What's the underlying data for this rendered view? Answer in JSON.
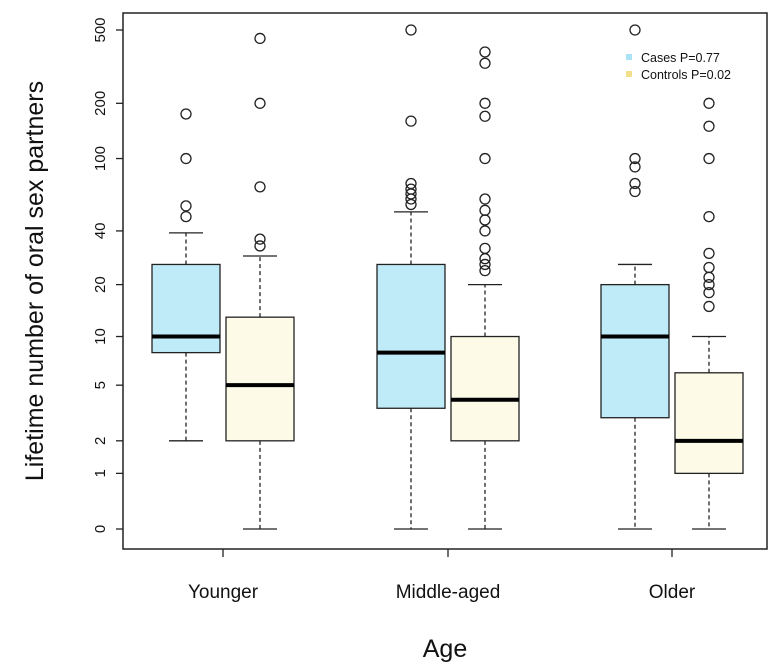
{
  "chart_data": {
    "type": "box",
    "xlabel": "Age",
    "ylabel": "Lifetime number of oral sex partners",
    "y_scale": "log(1+y)",
    "ylim": [
      0,
      500
    ],
    "y_ticks": [
      {
        "value": 0,
        "label": "0"
      },
      {
        "value": 1,
        "label": "1"
      },
      {
        "value": 2,
        "label": "2"
      },
      {
        "value": 5,
        "label": "5"
      },
      {
        "value": 10,
        "label": "10"
      },
      {
        "value": 20,
        "label": "20"
      },
      {
        "value": 40,
        "label": "40"
      },
      {
        "value": 100,
        "label": "100"
      },
      {
        "value": 200,
        "label": "200"
      },
      {
        "value": 500,
        "label": "500"
      }
    ],
    "categories": [
      "Younger",
      "Middle-aged",
      "Older"
    ],
    "legend_position": "top-right",
    "series": [
      {
        "name": "Cases P=0.77",
        "color": "#bfeaf7",
        "legend_color": "#a9e3f5",
        "boxes": [
          {
            "min": 2,
            "q1": 8,
            "median": 10,
            "q3": 26,
            "max": 39,
            "outliers": [
              48,
              55,
              100,
              175
            ]
          },
          {
            "min": 0,
            "q1": 3.5,
            "median": 8,
            "q3": 26,
            "max": 51,
            "outliers": [
              56,
              60,
              64,
              68,
              73,
              160,
              500
            ]
          },
          {
            "min": 0,
            "q1": 3,
            "median": 10,
            "q3": 20,
            "max": 26,
            "outliers": [
              66,
              73,
              90,
              100,
              500
            ]
          }
        ]
      },
      {
        "name": "Controls P=0.02",
        "color": "#fdfbe8",
        "legend_color": "#f3e08a",
        "boxes": [
          {
            "min": 0,
            "q1": 2,
            "median": 5,
            "q3": 13,
            "max": 29,
            "outliers": [
              33,
              36,
              70,
              200,
              450
            ]
          },
          {
            "min": 0,
            "q1": 2,
            "median": 4,
            "q3": 10,
            "max": 20,
            "outliers": [
              24,
              26,
              28,
              32,
              40,
              46,
              52,
              60,
              100,
              170,
              200,
              330,
              380
            ]
          },
          {
            "min": 0,
            "q1": 1,
            "median": 2,
            "q3": 6,
            "max": 10,
            "outliers": [
              15,
              18,
              20,
              22,
              25,
              30,
              48,
              100,
              150,
              200
            ]
          }
        ]
      }
    ]
  }
}
